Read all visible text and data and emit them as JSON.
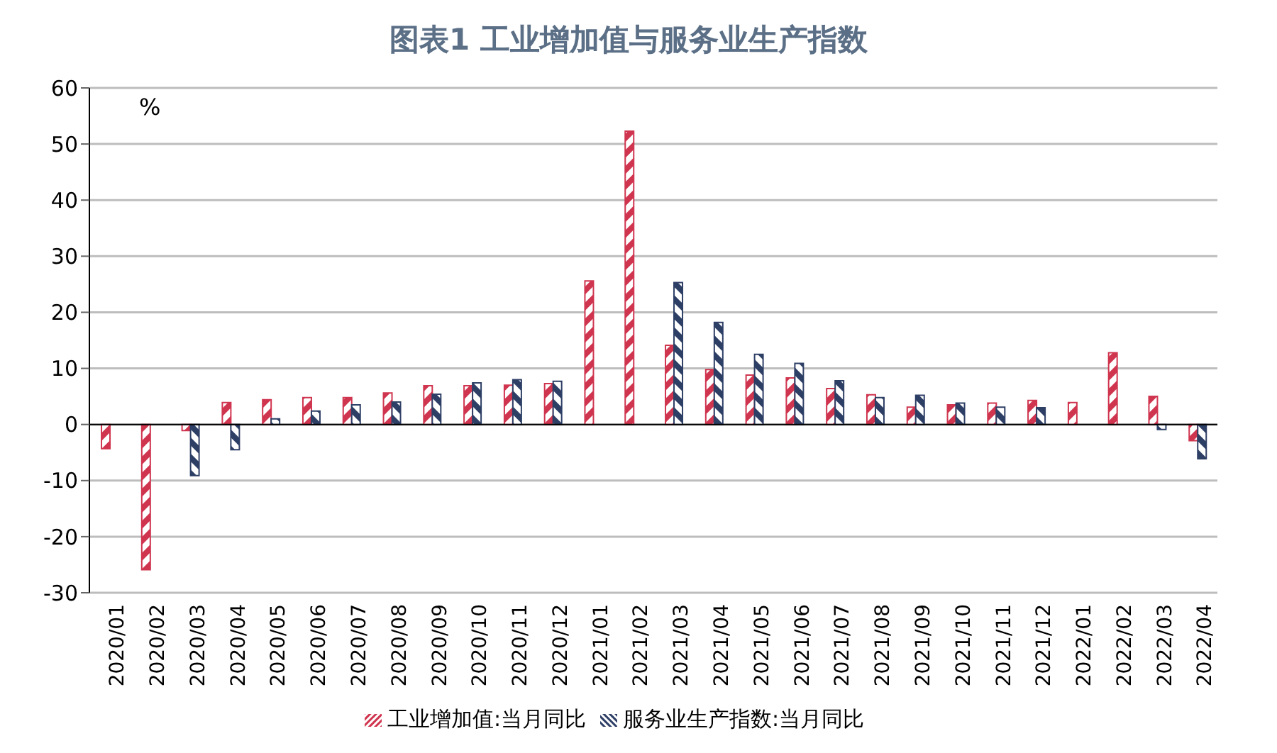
{
  "chart_data": {
    "type": "bar",
    "title": "图表1  工业增加值与服务业生产指数",
    "annotations": [
      "%"
    ],
    "categories": [
      "2020/01",
      "2020/02",
      "2020/03",
      "2020/04",
      "2020/05",
      "2020/06",
      "2020/07",
      "2020/08",
      "2020/09",
      "2020/10",
      "2020/11",
      "2020/12",
      "2021/01",
      "2021/02",
      "2021/03",
      "2021/04",
      "2021/05",
      "2021/06",
      "2021/07",
      "2021/08",
      "2021/09",
      "2021/10",
      "2021/11",
      "2021/12",
      "2022/01",
      "2022/02",
      "2022/03",
      "2022/04"
    ],
    "series": [
      {
        "name": "工业增加值:当月同比",
        "color": "#d0354f",
        "values": [
          -4.3,
          -25.9,
          -1.1,
          3.9,
          4.4,
          4.8,
          4.8,
          5.6,
          6.9,
          6.9,
          7.0,
          7.3,
          25.6,
          52.3,
          14.1,
          9.8,
          8.8,
          8.3,
          6.4,
          5.3,
          3.1,
          3.5,
          3.8,
          4.3,
          3.9,
          12.8,
          5.0,
          -2.9
        ]
      },
      {
        "name": "服务业生产指数:当月同比",
        "color": "#2e3f66",
        "values": [
          null,
          null,
          -9.1,
          -4.5,
          1.0,
          2.4,
          3.5,
          4.0,
          5.4,
          7.4,
          8.0,
          7.7,
          null,
          null,
          25.3,
          18.2,
          12.5,
          10.9,
          7.8,
          4.8,
          5.2,
          3.8,
          3.1,
          3.0,
          null,
          null,
          -0.9,
          -6.1
        ]
      }
    ],
    "ylim": [
      -30,
      60
    ],
    "yticks": [
      -30,
      -20,
      -10,
      0,
      10,
      20,
      30,
      40,
      50,
      60
    ],
    "grid": "y",
    "legend": "bottom"
  }
}
